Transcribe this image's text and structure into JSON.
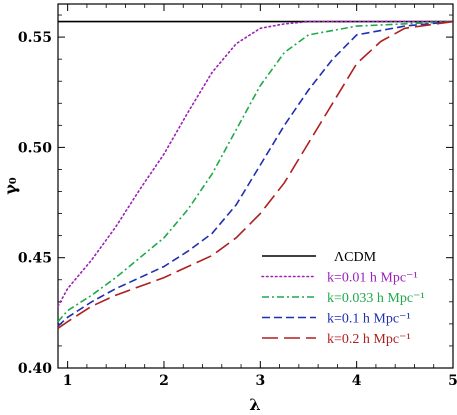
{
  "chart_data": {
    "type": "line",
    "xlabel": "λ",
    "ylabel": "γ₀",
    "xlim": [
      0.9,
      5.0
    ],
    "ylim": [
      0.4,
      0.565
    ],
    "x_ticks": [
      1,
      2,
      3,
      4,
      5
    ],
    "y_ticks": [
      0.4,
      0.45,
      0.5,
      0.55
    ],
    "x_tick_labels": [
      "1",
      "2",
      "3",
      "4",
      "5"
    ],
    "y_tick_labels": [
      "0.40",
      "0.45",
      "0.50",
      "0.55"
    ],
    "legend_position": "lower-right",
    "series": [
      {
        "name": "ΛCDM",
        "color": "#000000",
        "dash": "solid",
        "x": [
          0.9,
          5.0
        ],
        "y": [
          0.557,
          0.557
        ]
      },
      {
        "name": "k=0.01 h Mpc⁻¹",
        "color": "#9b1fb8",
        "dash": "dotted",
        "x": [
          0.9,
          1.0,
          1.25,
          1.5,
          1.75,
          2.0,
          2.25,
          2.5,
          2.75,
          3.0,
          3.25,
          3.5,
          4.0,
          5.0
        ],
        "y": [
          0.428,
          0.436,
          0.449,
          0.464,
          0.481,
          0.497,
          0.516,
          0.534,
          0.547,
          0.554,
          0.556,
          0.557,
          0.557,
          0.557
        ]
      },
      {
        "name": "k=0.033 h Mpc⁻¹",
        "color": "#1faa4a",
        "dash": "dashdot",
        "x": [
          0.9,
          1.0,
          1.25,
          1.5,
          1.75,
          2.0,
          2.25,
          2.5,
          2.75,
          3.0,
          3.25,
          3.5,
          4.0,
          5.0
        ],
        "y": [
          0.421,
          0.426,
          0.433,
          0.441,
          0.45,
          0.459,
          0.472,
          0.488,
          0.508,
          0.528,
          0.543,
          0.551,
          0.555,
          0.557
        ]
      },
      {
        "name": "k=0.1 h Mpc⁻¹",
        "color": "#1f2fb0",
        "dash": "dashed",
        "x": [
          0.9,
          1.0,
          1.25,
          1.5,
          1.75,
          2.0,
          2.25,
          2.5,
          2.75,
          3.0,
          3.25,
          3.5,
          3.75,
          4.0,
          4.5,
          5.0
        ],
        "y": [
          0.419,
          0.423,
          0.43,
          0.436,
          0.441,
          0.446,
          0.453,
          0.461,
          0.474,
          0.492,
          0.51,
          0.526,
          0.54,
          0.551,
          0.555,
          0.557
        ]
      },
      {
        "name": "k=0.2 h Mpc⁻¹",
        "color": "#b01f1f",
        "dash": "longdash",
        "x": [
          0.9,
          1.0,
          1.25,
          1.5,
          1.75,
          2.0,
          2.25,
          2.5,
          2.75,
          3.0,
          3.25,
          3.5,
          3.75,
          4.0,
          4.25,
          4.5,
          5.0
        ],
        "y": [
          0.418,
          0.421,
          0.428,
          0.433,
          0.437,
          0.441,
          0.446,
          0.451,
          0.459,
          0.47,
          0.484,
          0.502,
          0.52,
          0.538,
          0.548,
          0.554,
          0.557
        ]
      }
    ]
  }
}
